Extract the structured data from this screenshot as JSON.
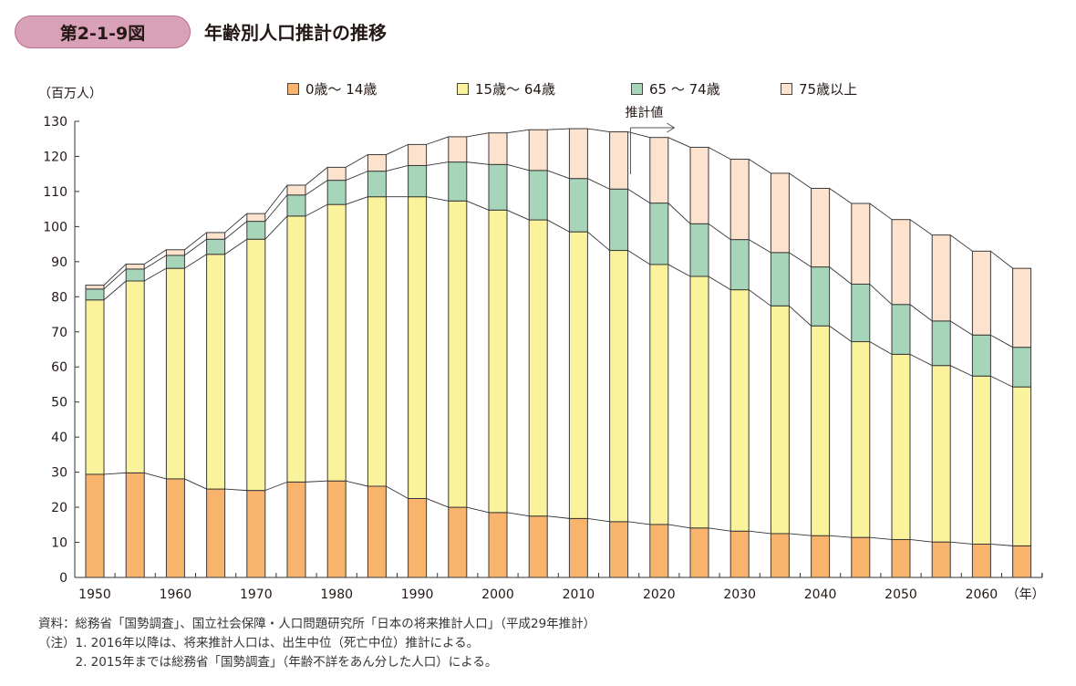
{
  "figure": {
    "badge": "第2-1-9図",
    "title": "年齢別人口推計の推移"
  },
  "chart_data": {
    "type": "bar",
    "stacked": true,
    "title": "年齢別人口推計の推移",
    "ylabel": "（百万人）",
    "xlabel": "（年）",
    "ylim": [
      0,
      130
    ],
    "yticks": [
      0,
      10,
      20,
      30,
      40,
      50,
      60,
      70,
      80,
      90,
      100,
      110,
      120,
      130
    ],
    "xtick_labels": [
      "1950",
      "1960",
      "1970",
      "1980",
      "1990",
      "2000",
      "2010",
      "2020",
      "2030",
      "2040",
      "2050",
      "2060"
    ],
    "categories": [
      1950,
      1955,
      1960,
      1965,
      1970,
      1975,
      1980,
      1985,
      1990,
      1995,
      2000,
      2005,
      2010,
      2015,
      2020,
      2025,
      2030,
      2035,
      2040,
      2045,
      2050,
      2055,
      2060,
      2065
    ],
    "legend_position": "top",
    "series": [
      {
        "name": "0歳～ 14歳",
        "color": "#f8b36d",
        "values": [
          29.4,
          29.8,
          28.1,
          25.2,
          24.8,
          27.2,
          27.5,
          26.0,
          22.5,
          20.0,
          18.5,
          17.5,
          16.8,
          15.9,
          15.1,
          14.1,
          13.2,
          12.5,
          11.9,
          11.4,
          10.8,
          10.1,
          9.5,
          9.0
        ]
      },
      {
        "name": "15歳～ 64歳",
        "color": "#fbf39b",
        "values": [
          49.7,
          54.7,
          60.0,
          66.9,
          71.6,
          75.8,
          78.8,
          82.5,
          86.0,
          87.3,
          86.2,
          84.4,
          81.7,
          77.3,
          74.1,
          71.7,
          68.8,
          64.9,
          59.8,
          55.8,
          52.8,
          50.3,
          47.9,
          45.3
        ]
      },
      {
        "name": "65 ～ 74歳",
        "color": "#a7d5b9",
        "values": [
          3.1,
          3.4,
          3.7,
          4.3,
          5.1,
          6.0,
          6.9,
          7.3,
          8.9,
          11.1,
          13.0,
          14.1,
          15.2,
          17.5,
          17.5,
          15.0,
          14.3,
          15.2,
          16.8,
          16.4,
          14.2,
          12.7,
          11.7,
          11.3
        ]
      },
      {
        "name": "75歳以上",
        "color": "#fde3cd",
        "values": [
          1.1,
          1.4,
          1.6,
          1.9,
          2.2,
          2.8,
          3.7,
          4.7,
          6.0,
          7.2,
          9.0,
          11.6,
          14.2,
          16.3,
          18.7,
          21.8,
          22.9,
          22.6,
          22.4,
          23.0,
          24.2,
          24.5,
          23.9,
          22.5
        ]
      }
    ],
    "annotation": {
      "label": "推計値",
      "from_year": 2016
    },
    "grid": false
  },
  "notes": [
    "資料：総務省「国勢調査」、国立社会保障・人口問題研究所「日本の将来推計人口」（平成29年推計）",
    "（注）1. 2016年以降は、将来推計人口は、出生中位（死亡中位）推計による。",
    "　　　2. 2015年までは総務省「国勢調査」（年齢不詳をあん分した人口）による。"
  ]
}
